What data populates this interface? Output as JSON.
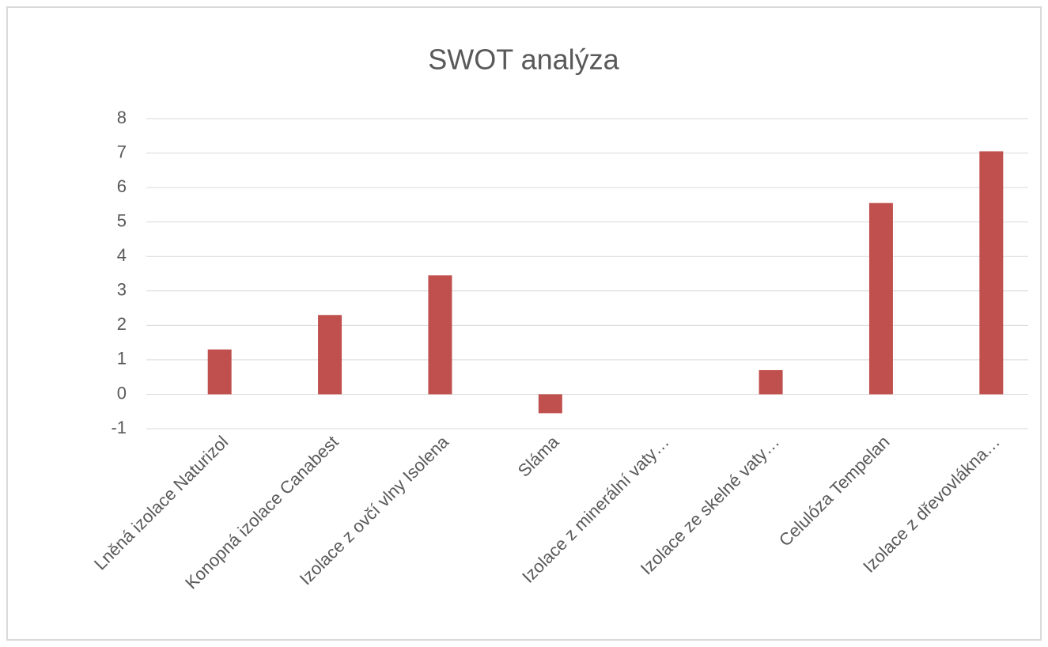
{
  "chart_data": {
    "type": "bar",
    "title": "SWOT analýza",
    "categories": [
      "Lněná izolace Naturizol",
      "Konopná izolace Canabest",
      "Izolace z ovčí vlny Isolena",
      "Sláma",
      "Izolace z minerální vaty…",
      "Izolace ze skelné vaty…",
      "Celulóza Tempelan",
      "Izolace z dřevovlákna…"
    ],
    "values": [
      1.3,
      2.3,
      3.45,
      -0.55,
      0,
      0.7,
      5.55,
      7.05
    ],
    "color": "#c0504d",
    "ylim": [
      -1,
      8
    ],
    "yticks": [
      -1,
      0,
      1,
      2,
      3,
      4,
      5,
      6,
      7,
      8
    ],
    "grid": true
  }
}
